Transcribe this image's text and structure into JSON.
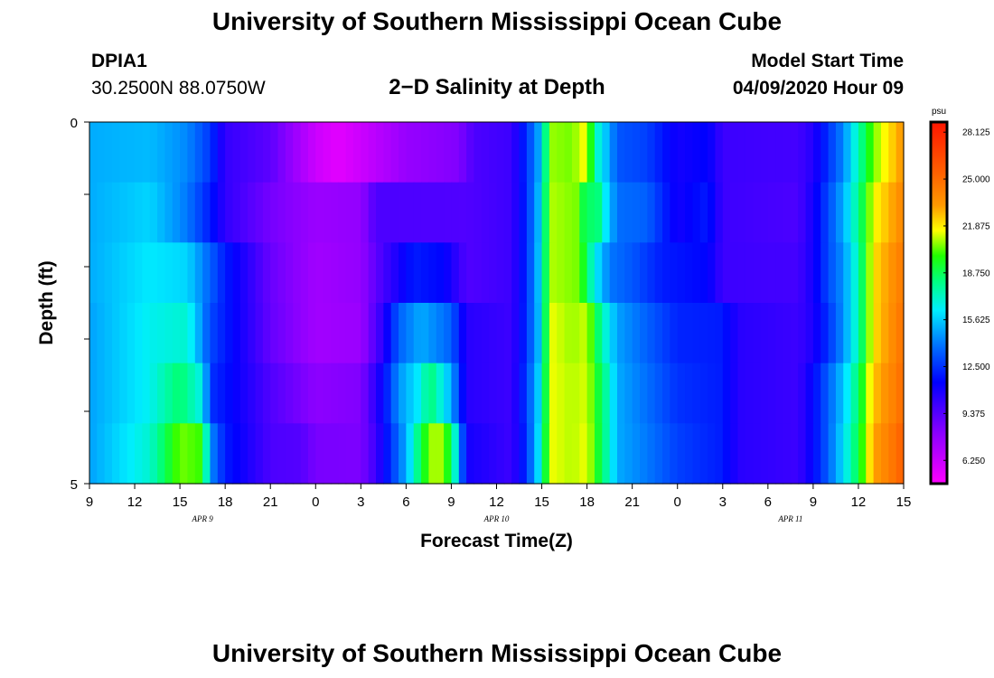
{
  "header": {
    "title": "University of Southern Mississippi Ocean Cube",
    "footer_title": "University of Southern Mississippi Ocean Cube",
    "station_name": "DPIA1",
    "station_coords": "30.2500N 88.0750W",
    "plot_title": "2−D Salinity at Depth",
    "start_label": "Model Start Time",
    "start_value": "04/09/2020 Hour 09"
  },
  "chart_data": {
    "type": "heatmap",
    "xlabel": "Forecast Time(Z)",
    "ylabel": "Depth (ft)",
    "x_tick_labels": [
      "9",
      "12",
      "15",
      "18",
      "21",
      "0",
      "3",
      "6",
      "9",
      "12",
      "15",
      "18",
      "21",
      "0",
      "3",
      "6",
      "9",
      "12",
      "15"
    ],
    "x_tick_hours": [
      0,
      3,
      6,
      9,
      12,
      15,
      18,
      21,
      24,
      27,
      30,
      33,
      36,
      39,
      42,
      45,
      48,
      51,
      54
    ],
    "date_labels": [
      {
        "text": "APR  9",
        "hour": 7.5
      },
      {
        "text": "APR  10",
        "hour": 27
      },
      {
        "text": "APR  11",
        "hour": 46.5
      }
    ],
    "x_range_hours": [
      0,
      54
    ],
    "y_range": [
      0,
      5
    ],
    "y_tick_labels": [
      "0",
      "5"
    ],
    "y_tick_values": [
      0,
      1,
      2,
      3,
      4,
      5
    ],
    "depth_levels": [
      0,
      1,
      2,
      3,
      4,
      5
    ],
    "units": "psu",
    "colorbar": {
      "min": 4.7,
      "max": 28.8,
      "tick_labels": [
        "28.125",
        "25.000",
        "21.875",
        "18.750",
        "15.625",
        "12.500",
        "9.375",
        "6.250"
      ],
      "tick_values": [
        28.125,
        25.0,
        21.875,
        18.75,
        15.625,
        12.5,
        9.375,
        6.25
      ]
    },
    "time_step_hours": 0.5,
    "salinity_profiles": [
      {
        "depth": 0,
        "values": [
          [
            0,
            15.0
          ],
          [
            4,
            15.3
          ],
          [
            6.5,
            14.3
          ],
          [
            8,
            12.6
          ],
          [
            9,
            10.2
          ],
          [
            12,
            9.2
          ],
          [
            15,
            6.2
          ],
          [
            16.5,
            5.5
          ],
          [
            18,
            6.2
          ],
          [
            21,
            7.7
          ],
          [
            24.5,
            8.3
          ],
          [
            25.5,
            9.6
          ],
          [
            28,
            10.0
          ],
          [
            29,
            12.5
          ],
          [
            30,
            15.5
          ],
          [
            30.5,
            20.8
          ],
          [
            32,
            20.5
          ],
          [
            33,
            21.8
          ],
          [
            33.5,
            17.5
          ],
          [
            34.5,
            14.8
          ],
          [
            35,
            13.3
          ],
          [
            37,
            12.8
          ],
          [
            39,
            11.0
          ],
          [
            41,
            11.5
          ],
          [
            42,
            10.0
          ],
          [
            47,
            9.8
          ],
          [
            48,
            10.6
          ],
          [
            49,
            12.5
          ],
          [
            50,
            14.3
          ],
          [
            51,
            17.5
          ],
          [
            52,
            20.5
          ],
          [
            54,
            23.5
          ]
        ]
      },
      {
        "depth": 1,
        "values": [
          [
            0,
            15.0
          ],
          [
            4,
            15.8
          ],
          [
            6.5,
            14.0
          ],
          [
            8,
            12.0
          ],
          [
            9,
            10.3
          ],
          [
            12,
            8.6
          ],
          [
            15,
            7.6
          ],
          [
            18,
            7.8
          ],
          [
            19,
            9.6
          ],
          [
            25,
            9.5
          ],
          [
            28,
            10.0
          ],
          [
            29,
            12.4
          ],
          [
            30,
            16.0
          ],
          [
            30.5,
            21.0
          ],
          [
            32.5,
            20.5
          ],
          [
            33,
            17.5
          ],
          [
            33.5,
            19.5
          ],
          [
            34,
            17.0
          ],
          [
            35,
            13.8
          ],
          [
            37,
            13.5
          ],
          [
            39,
            11.0
          ],
          [
            41,
            12.0
          ],
          [
            42,
            10.0
          ],
          [
            47,
            9.6
          ],
          [
            48,
            11.0
          ],
          [
            49,
            13.0
          ],
          [
            50,
            15.0
          ],
          [
            51,
            18.0
          ],
          [
            52,
            21.5
          ],
          [
            54,
            24.0
          ]
        ]
      },
      {
        "depth": 2,
        "values": [
          [
            0,
            15.0
          ],
          [
            4,
            16.2
          ],
          [
            6.5,
            15.8
          ],
          [
            9,
            12.0
          ],
          [
            12,
            8.9
          ],
          [
            15,
            7.4
          ],
          [
            18,
            7.8
          ],
          [
            19.5,
            9.8
          ],
          [
            21.5,
            12.0
          ],
          [
            23.5,
            11.5
          ],
          [
            25,
            9.5
          ],
          [
            28,
            10.0
          ],
          [
            29,
            12.4
          ],
          [
            30,
            16.2
          ],
          [
            30.5,
            21.0
          ],
          [
            32.5,
            20.5
          ],
          [
            33,
            18.5
          ],
          [
            33.5,
            16.5
          ],
          [
            34.5,
            14.0
          ],
          [
            36,
            13.3
          ],
          [
            38,
            12.0
          ],
          [
            41,
            11.5
          ],
          [
            42,
            10.0
          ],
          [
            47,
            9.8
          ],
          [
            48,
            11.0
          ],
          [
            49,
            13.0
          ],
          [
            50,
            14.5
          ],
          [
            51,
            17.5
          ],
          [
            52,
            22.0
          ],
          [
            54,
            24.5
          ]
        ]
      },
      {
        "depth": 3,
        "values": [
          [
            0,
            14.8
          ],
          [
            4,
            16.5
          ],
          [
            6.5,
            17.0
          ],
          [
            8,
            13.0
          ],
          [
            9,
            12.0
          ],
          [
            12,
            9.0
          ],
          [
            15,
            7.4
          ],
          [
            18,
            7.6
          ],
          [
            19.5,
            10.5
          ],
          [
            20.5,
            13.5
          ],
          [
            22,
            15.0
          ],
          [
            24,
            13.5
          ],
          [
            25,
            10.5
          ],
          [
            28,
            10.0
          ],
          [
            29,
            12.5
          ],
          [
            30,
            16.0
          ],
          [
            30.5,
            21.5
          ],
          [
            32,
            20.8
          ],
          [
            33,
            21.2
          ],
          [
            34,
            17.5
          ],
          [
            35,
            14.8
          ],
          [
            37,
            13.5
          ],
          [
            39,
            12.2
          ],
          [
            42,
            12.0
          ],
          [
            43,
            10.5
          ],
          [
            47,
            10.0
          ],
          [
            48,
            10.8
          ],
          [
            49,
            12.5
          ],
          [
            50,
            14.5
          ],
          [
            51,
            17.5
          ],
          [
            52,
            22.0
          ],
          [
            54,
            24.8
          ]
        ]
      },
      {
        "depth": 4,
        "values": [
          [
            0,
            14.8
          ],
          [
            4,
            16.5
          ],
          [
            6,
            18.5
          ],
          [
            7.5,
            16.5
          ],
          [
            8,
            12.5
          ],
          [
            9,
            11.8
          ],
          [
            12,
            9.5
          ],
          [
            15,
            8.0
          ],
          [
            18,
            8.3
          ],
          [
            19.5,
            11.5
          ],
          [
            20.5,
            14.5
          ],
          [
            22,
            16.5
          ],
          [
            22.5,
            18.5
          ],
          [
            23,
            17.5
          ],
          [
            24,
            15.0
          ],
          [
            25,
            10.5
          ],
          [
            28,
            10.0
          ],
          [
            29,
            12.8
          ],
          [
            30,
            16.5
          ],
          [
            30.5,
            21.5
          ],
          [
            32,
            21.0
          ],
          [
            33,
            21.3
          ],
          [
            34.5,
            17.0
          ],
          [
            35,
            15.0
          ],
          [
            37,
            13.8
          ],
          [
            39,
            12.5
          ],
          [
            42,
            12.0
          ],
          [
            43,
            10.5
          ],
          [
            47,
            10.0
          ],
          [
            48,
            11.5
          ],
          [
            49,
            13.5
          ],
          [
            50,
            15.5
          ],
          [
            51,
            18.5
          ],
          [
            52,
            22.5
          ],
          [
            54,
            25.0
          ]
        ]
      },
      {
        "depth": 5,
        "values": [
          [
            0,
            14.8
          ],
          [
            4,
            17.0
          ],
          [
            6,
            20.5
          ],
          [
            7.5,
            20.0
          ],
          [
            8,
            14.5
          ],
          [
            9,
            12.0
          ],
          [
            12,
            9.6
          ],
          [
            14,
            9.4
          ],
          [
            15,
            8.5
          ],
          [
            18,
            8.4
          ],
          [
            19,
            10.0
          ],
          [
            20,
            12.5
          ],
          [
            21,
            15.0
          ],
          [
            22,
            19.0
          ],
          [
            23,
            21.5
          ],
          [
            24,
            19.0
          ],
          [
            25,
            11.0
          ],
          [
            28,
            10.0
          ],
          [
            29,
            12.5
          ],
          [
            30,
            17.0
          ],
          [
            30.5,
            21.5
          ],
          [
            32,
            21.0
          ],
          [
            33,
            21.5
          ],
          [
            34.5,
            17.0
          ],
          [
            35,
            15.0
          ],
          [
            37,
            14.0
          ],
          [
            39,
            12.8
          ],
          [
            42,
            12.0
          ],
          [
            43,
            10.5
          ],
          [
            47,
            10.0
          ],
          [
            48,
            11.5
          ],
          [
            49,
            13.5
          ],
          [
            50,
            16.0
          ],
          [
            51,
            19.0
          ],
          [
            52,
            23.0
          ],
          [
            54,
            25.5
          ]
        ]
      }
    ]
  }
}
